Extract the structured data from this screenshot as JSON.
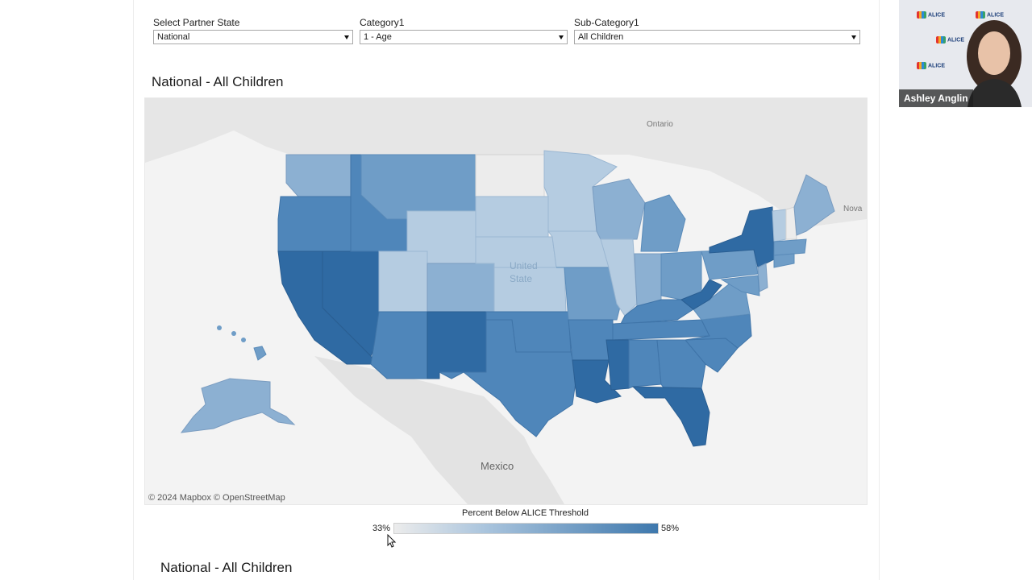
{
  "filters": [
    {
      "label": "Select Partner State",
      "value": "National"
    },
    {
      "label": "Category1",
      "value": "1 - Age"
    },
    {
      "label": "Sub-Category1",
      "value": "All Children"
    }
  ],
  "map_section": {
    "title": "National - All Children",
    "place_labels": {
      "ontario": "Ontario",
      "nova": "Nova",
      "united_states_1": "United",
      "united_states_2": "State",
      "mexico": "Mexico"
    },
    "attribution": "© 2024 Mapbox  © OpenStreetMap",
    "colors": {
      "lightest": "#ececec",
      "light": "#b5cce1",
      "mid": "#8cb0d2",
      "medium": "#6f9dc7",
      "dark": "#4f86ba",
      "darkest": "#2f6aa3"
    }
  },
  "legend": {
    "title": "Percent Below ALICE Threshold",
    "min_label": "33%",
    "max_label": "58%",
    "min_value": 0.33,
    "max_value": 0.58
  },
  "second_section": {
    "title": "National - All Children"
  },
  "video": {
    "participant_name": "Ashley Anglin",
    "logo_text_1": "UNITED FOR",
    "logo_text_2": "ALICE"
  }
}
